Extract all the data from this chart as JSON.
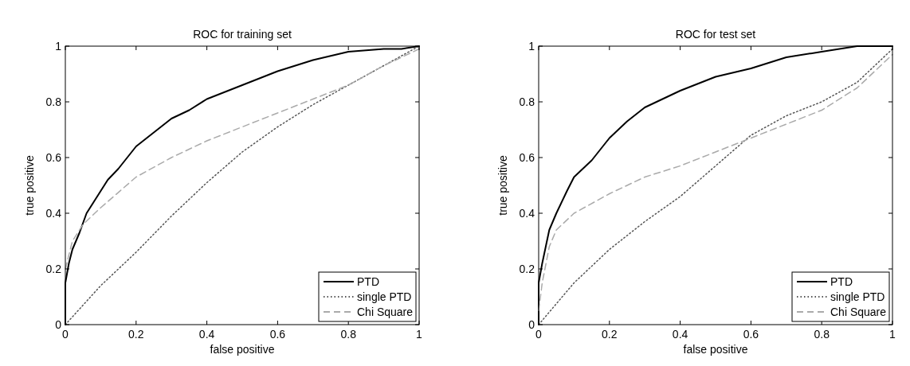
{
  "chart_data": [
    {
      "type": "line",
      "title": "ROC for training set",
      "xlabel": "false positive",
      "ylabel": "true positive",
      "xlim": [
        0,
        1
      ],
      "ylim": [
        0,
        1
      ],
      "xticks": [
        0,
        0.2,
        0.4,
        0.6,
        0.8,
        1
      ],
      "yticks": [
        0,
        0.2,
        0.4,
        0.6,
        0.8,
        1
      ],
      "legend": "bottom right",
      "marker": "none",
      "series": [
        {
          "name": "PTD",
          "color": "#000000",
          "line_style": "solid",
          "x": [
            0,
            0,
            0.01,
            0.02,
            0.04,
            0.06,
            0.08,
            0.1,
            0.12,
            0.15,
            0.2,
            0.25,
            0.3,
            0.35,
            0.4,
            0.5,
            0.6,
            0.7,
            0.8,
            0.9,
            0.95,
            1
          ],
          "values": [
            0,
            0.15,
            0.22,
            0.27,
            0.33,
            0.4,
            0.44,
            0.48,
            0.52,
            0.56,
            0.64,
            0.69,
            0.74,
            0.77,
            0.81,
            0.86,
            0.91,
            0.95,
            0.98,
            0.99,
            0.99,
            1
          ]
        },
        {
          "name": "single PTD",
          "color": "#555555",
          "line_style": "dotted",
          "x": [
            0,
            0.1,
            0.2,
            0.3,
            0.4,
            0.5,
            0.6,
            0.7,
            0.8,
            0.9,
            1
          ],
          "values": [
            0,
            0.14,
            0.26,
            0.39,
            0.51,
            0.62,
            0.71,
            0.79,
            0.86,
            0.93,
            1
          ]
        },
        {
          "name": "Chi Square",
          "color": "#aaaaaa",
          "line_style": "dashed",
          "x": [
            0,
            0.02,
            0.05,
            0.1,
            0.2,
            0.3,
            0.4,
            0.5,
            0.6,
            0.7,
            0.8,
            0.9,
            1
          ],
          "values": [
            0.2,
            0.3,
            0.36,
            0.42,
            0.53,
            0.6,
            0.66,
            0.71,
            0.76,
            0.81,
            0.86,
            0.93,
            0.99
          ]
        }
      ]
    },
    {
      "type": "line",
      "title": "ROC for test set",
      "xlabel": "false positive",
      "ylabel": "true positive",
      "xlim": [
        0,
        1
      ],
      "ylim": [
        0,
        1
      ],
      "xticks": [
        0,
        0.2,
        0.4,
        0.6,
        0.8,
        1
      ],
      "yticks": [
        0,
        0.2,
        0.4,
        0.6,
        0.8,
        1
      ],
      "legend": "bottom right",
      "marker": "none",
      "series": [
        {
          "name": "PTD",
          "color": "#000000",
          "line_style": "solid",
          "x": [
            0,
            0,
            0.01,
            0.02,
            0.03,
            0.05,
            0.08,
            0.1,
            0.15,
            0.2,
            0.25,
            0.3,
            0.35,
            0.4,
            0.5,
            0.6,
            0.7,
            0.8,
            0.9,
            1
          ],
          "values": [
            0,
            0.15,
            0.22,
            0.28,
            0.34,
            0.4,
            0.48,
            0.53,
            0.59,
            0.67,
            0.73,
            0.78,
            0.81,
            0.84,
            0.89,
            0.92,
            0.96,
            0.98,
            1,
            1
          ]
        },
        {
          "name": "single PTD",
          "color": "#555555",
          "line_style": "dotted",
          "x": [
            0,
            0.1,
            0.2,
            0.3,
            0.4,
            0.5,
            0.6,
            0.7,
            0.8,
            0.9,
            1
          ],
          "values": [
            0,
            0.15,
            0.27,
            0.37,
            0.46,
            0.57,
            0.68,
            0.75,
            0.8,
            0.87,
            0.99
          ]
        },
        {
          "name": "Chi Square",
          "color": "#aaaaaa",
          "line_style": "dashed",
          "x": [
            0,
            0.01,
            0.03,
            0.05,
            0.1,
            0.2,
            0.3,
            0.4,
            0.5,
            0.6,
            0.7,
            0.8,
            0.9,
            1
          ],
          "values": [
            0.05,
            0.15,
            0.28,
            0.34,
            0.4,
            0.47,
            0.53,
            0.57,
            0.62,
            0.67,
            0.72,
            0.77,
            0.85,
            0.97
          ]
        }
      ]
    }
  ]
}
